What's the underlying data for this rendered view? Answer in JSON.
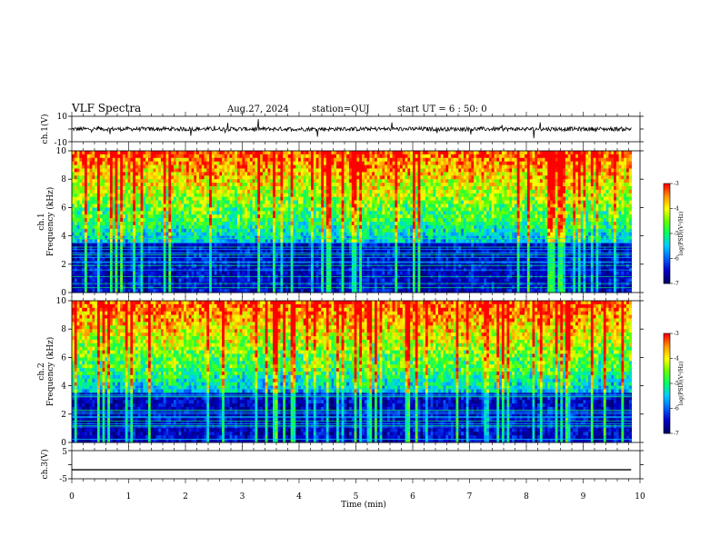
{
  "header": {
    "title": "VLF Spectra",
    "date": "Aug.27, 2024",
    "station": "station=OUJ",
    "start_ut": "start  UT =  6 : 50: 0"
  },
  "chart_data": [
    {
      "type": "line",
      "name": "ch1-waveform",
      "ylabel": "ch.1(V)",
      "ylim": [
        -10,
        10
      ],
      "yticks": [
        "10",
        "-10"
      ],
      "xlim": [
        0,
        10
      ],
      "baseline": 0,
      "trace_end_min": 9.85
    },
    {
      "type": "heatmap",
      "name": "ch1-spectrogram",
      "ylabel": "ch.1\nFrequency  (kHz)",
      "ylabel_top": "ch.1",
      "ylabel_bottom": "Frequency  (kHz)",
      "ylim": [
        0,
        10
      ],
      "yticks": [
        "0",
        "2",
        "4",
        "6",
        "8",
        "10"
      ],
      "xlim": [
        0,
        10
      ],
      "data_end_min": 9.85,
      "colorbar": {
        "label": "log(PSD)(V²/Hz)",
        "ticks": [
          "-3",
          "-4",
          "-5",
          "-6",
          "-7"
        ],
        "range": [
          -7,
          -3
        ]
      }
    },
    {
      "type": "heatmap",
      "name": "ch2-spectrogram",
      "ylabel_top": "ch.2",
      "ylabel_bottom": "Frequency  (kHz)",
      "ylim": [
        0,
        10
      ],
      "yticks": [
        "0",
        "2",
        "4",
        "6",
        "8",
        "10"
      ],
      "xlim": [
        0,
        10
      ],
      "data_end_min": 9.85,
      "colorbar": {
        "label": "log(PSD)(V²/Hz)",
        "ticks": [
          "-3",
          "-4",
          "-5",
          "-6",
          "-7"
        ],
        "range": [
          -7,
          -3
        ]
      }
    },
    {
      "type": "line",
      "name": "ch3-waveform",
      "ylabel": "ch.3(V)",
      "ylim": [
        -5,
        5
      ],
      "yticks": [
        "5",
        "-5"
      ],
      "xlim": [
        0,
        10
      ],
      "baseline": -1.8,
      "trace_end_min": 9.85
    }
  ],
  "x_axis": {
    "label": "Time  (min)",
    "ticks": [
      "0",
      "1",
      "2",
      "3",
      "4",
      "5",
      "6",
      "7",
      "8",
      "9",
      "10"
    ]
  },
  "colors": {
    "axis": "#000000",
    "background": "#ffffff",
    "colormap": [
      "#000066",
      "#0000cc",
      "#0066ff",
      "#00ccff",
      "#00ff66",
      "#66ff00",
      "#ffff00",
      "#ff9900",
      "#ff0000",
      "#ffffff"
    ]
  }
}
